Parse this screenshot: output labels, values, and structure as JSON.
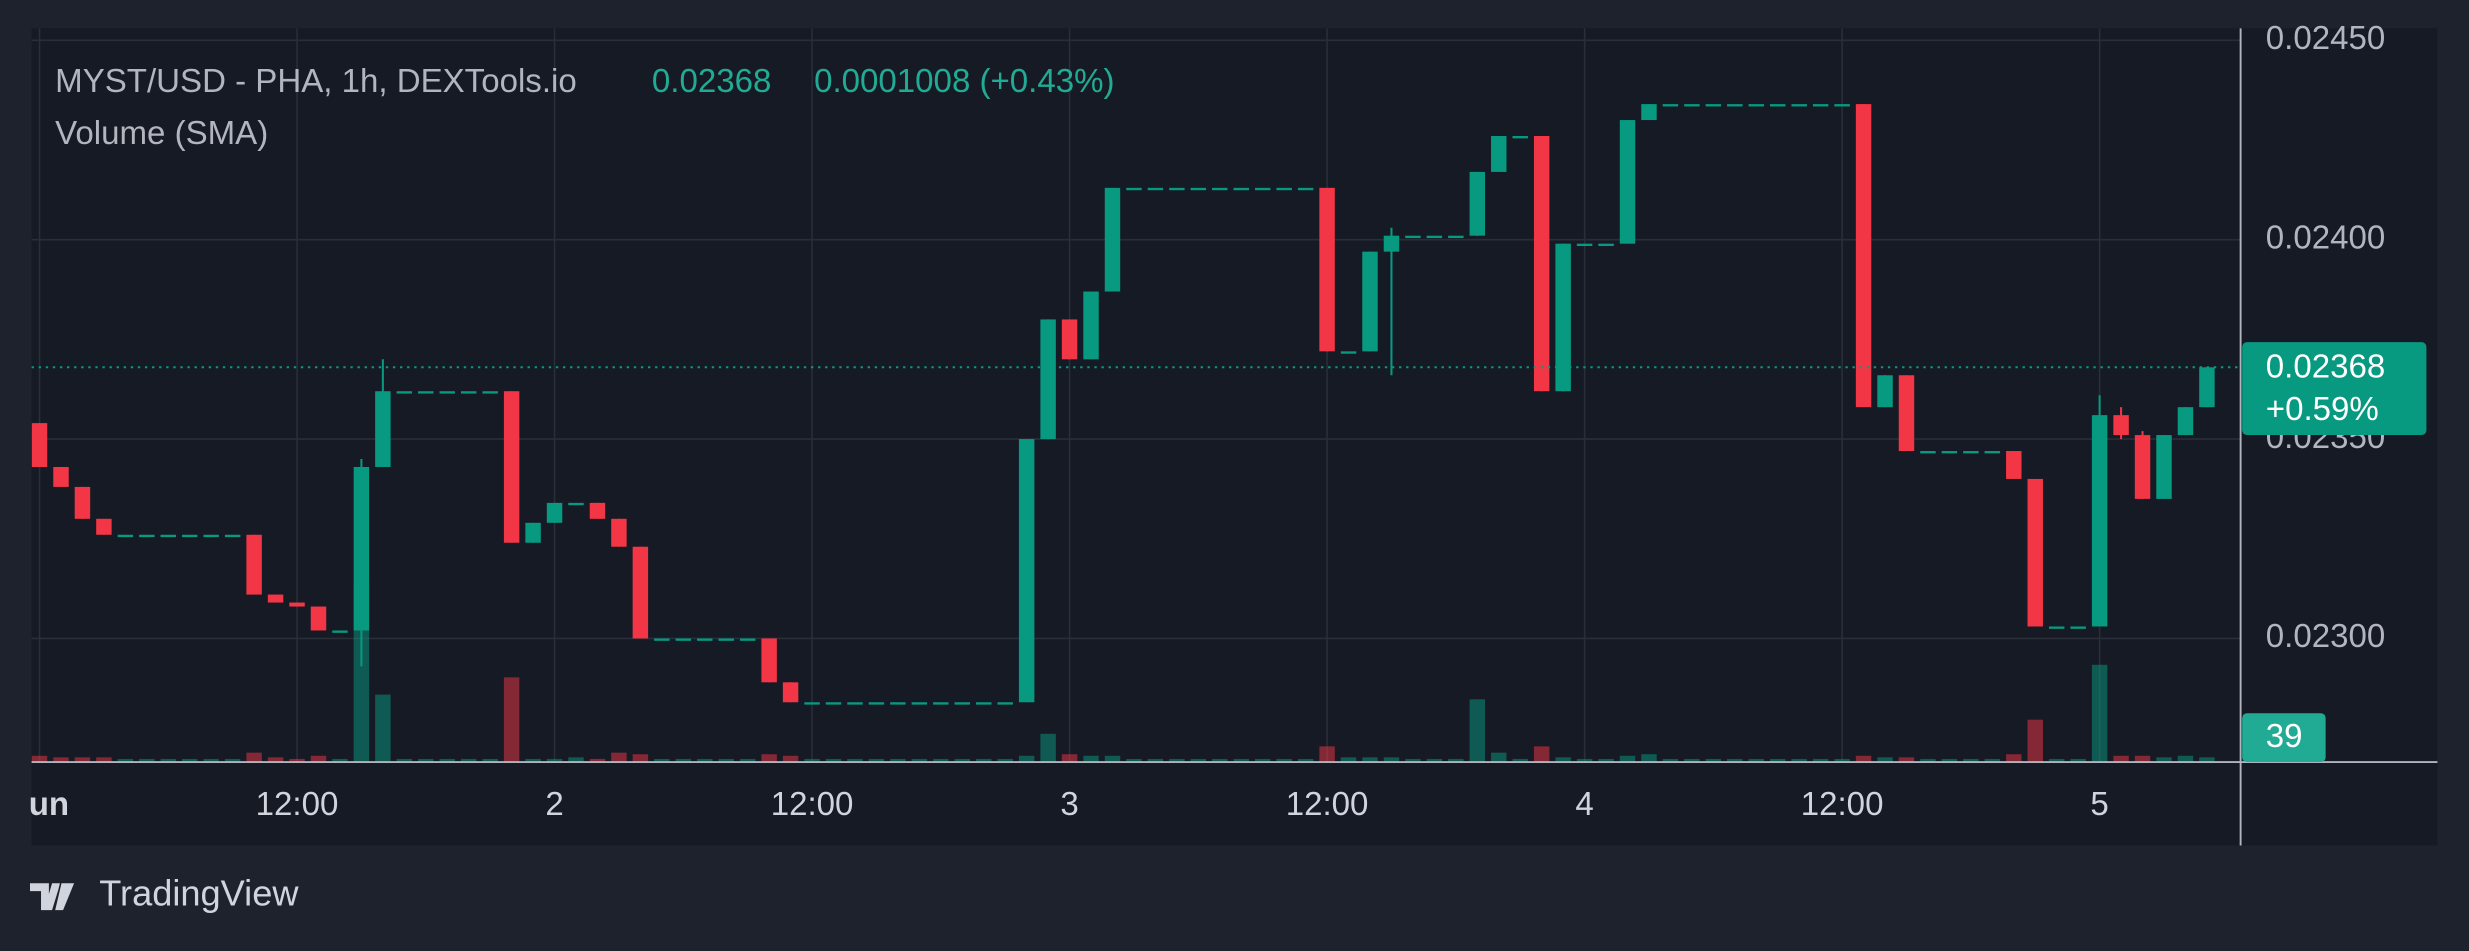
{
  "chart_data": {
    "type": "candlestick",
    "title": "MYST/USD - PHA, 1h, DEXTools.io",
    "header_price": 0.02368,
    "header_change": "0.0001008 (+0.43%)",
    "volume_title": "Volume (SMA)",
    "last_change": "+0.59%",
    "brand": "TradingView",
    "up_color": "#089981",
    "down_color": "#f23645",
    "grid": true,
    "xlim": [
      -0.37,
      102.57
    ],
    "xticks": [
      {
        "value": 0,
        "label": "un"
      },
      {
        "value": 12,
        "label": "12:00"
      },
      {
        "value": 24,
        "label": "2"
      },
      {
        "value": 36,
        "label": "12:00"
      },
      {
        "value": 48,
        "label": "3"
      },
      {
        "value": 60,
        "label": "12:00"
      },
      {
        "value": 72,
        "label": "4"
      },
      {
        "value": 84,
        "label": "12:00"
      },
      {
        "value": 96,
        "label": "5"
      }
    ],
    "ylim": [
      0.02269,
      0.02453
    ],
    "yticks": [
      {
        "value": 0.023,
        "label": "0.02300"
      },
      {
        "value": 0.0235,
        "label": "0.02350"
      },
      {
        "value": 0.024,
        "label": "0.02400"
      },
      {
        "value": 0.0245,
        "label": "0.02450"
      }
    ],
    "volume_ylim": [
      0,
      2400
    ],
    "ohlc": [
      [
        0.02354,
        0.02354,
        0.02343,
        0.02343
      ],
      [
        0.02343,
        0.02343,
        0.02338,
        0.02338
      ],
      [
        0.02338,
        0.02338,
        0.0233,
        0.0233
      ],
      [
        0.0233,
        0.0233,
        0.02326,
        0.02326
      ],
      [
        0.02326,
        0.02326,
        0.02326,
        0.02326
      ],
      [
        0.02326,
        0.02326,
        0.02326,
        0.02326
      ],
      [
        0.02326,
        0.02326,
        0.02326,
        0.02326
      ],
      [
        0.02326,
        0.02326,
        0.02326,
        0.02326
      ],
      [
        0.02326,
        0.02326,
        0.02326,
        0.02326
      ],
      [
        0.02326,
        0.02326,
        0.02326,
        0.02326
      ],
      [
        0.02326,
        0.02326,
        0.02311,
        0.02311
      ],
      [
        0.02311,
        0.02311,
        0.02309,
        0.02309
      ],
      [
        0.02309,
        0.02309,
        0.02308,
        0.02308
      ],
      [
        0.02308,
        0.02308,
        0.02302,
        0.02302
      ],
      [
        0.02302,
        0.02302,
        0.02302,
        0.02302
      ],
      [
        0.02302,
        0.02345,
        0.02293,
        0.02343
      ],
      [
        0.02343,
        0.0237,
        0.02343,
        0.02362
      ],
      [
        0.02362,
        0.02362,
        0.02362,
        0.02362
      ],
      [
        0.02362,
        0.02362,
        0.02362,
        0.02362
      ],
      [
        0.02362,
        0.02362,
        0.02362,
        0.02362
      ],
      [
        0.02362,
        0.02362,
        0.02362,
        0.02362
      ],
      [
        0.02362,
        0.02362,
        0.02362,
        0.02362
      ],
      [
        0.02362,
        0.02362,
        0.02324,
        0.02324
      ],
      [
        0.02324,
        0.02329,
        0.02324,
        0.02329
      ],
      [
        0.02329,
        0.02334,
        0.02329,
        0.02334
      ],
      [
        0.02334,
        0.02334,
        0.02334,
        0.02334
      ],
      [
        0.02334,
        0.02334,
        0.0233,
        0.0233
      ],
      [
        0.0233,
        0.0233,
        0.02323,
        0.02323
      ],
      [
        0.02323,
        0.02323,
        0.023,
        0.023
      ],
      [
        0.023,
        0.023,
        0.023,
        0.023
      ],
      [
        0.023,
        0.023,
        0.023,
        0.023
      ],
      [
        0.023,
        0.023,
        0.023,
        0.023
      ],
      [
        0.023,
        0.023,
        0.023,
        0.023
      ],
      [
        0.023,
        0.023,
        0.023,
        0.023
      ],
      [
        0.023,
        0.023,
        0.02289,
        0.02289
      ],
      [
        0.02289,
        0.02289,
        0.02284,
        0.02284
      ],
      [
        0.02284,
        0.02284,
        0.02284,
        0.02284
      ],
      [
        0.02284,
        0.02284,
        0.02284,
        0.02284
      ],
      [
        0.02284,
        0.02284,
        0.02284,
        0.02284
      ],
      [
        0.02284,
        0.02284,
        0.02284,
        0.02284
      ],
      [
        0.02284,
        0.02284,
        0.02284,
        0.02284
      ],
      [
        0.02284,
        0.02284,
        0.02284,
        0.02284
      ],
      [
        0.02284,
        0.02284,
        0.02284,
        0.02284
      ],
      [
        0.02284,
        0.02284,
        0.02284,
        0.02284
      ],
      [
        0.02284,
        0.02284,
        0.02284,
        0.02284
      ],
      [
        0.02284,
        0.02284,
        0.02284,
        0.02284
      ],
      [
        0.02284,
        0.0235,
        0.02284,
        0.0235
      ],
      [
        0.0235,
        0.0238,
        0.0235,
        0.0238
      ],
      [
        0.0238,
        0.0238,
        0.0237,
        0.0237
      ],
      [
        0.0237,
        0.02387,
        0.0237,
        0.02387
      ],
      [
        0.02387,
        0.02413,
        0.02387,
        0.02413
      ],
      [
        0.02413,
        0.02413,
        0.02413,
        0.02413
      ],
      [
        0.02413,
        0.02413,
        0.02413,
        0.02413
      ],
      [
        0.02413,
        0.02413,
        0.02413,
        0.02413
      ],
      [
        0.02413,
        0.02413,
        0.02413,
        0.02413
      ],
      [
        0.02413,
        0.02413,
        0.02413,
        0.02413
      ],
      [
        0.02413,
        0.02413,
        0.02413,
        0.02413
      ],
      [
        0.02413,
        0.02413,
        0.02413,
        0.02413
      ],
      [
        0.02413,
        0.02413,
        0.02413,
        0.02413
      ],
      [
        0.02413,
        0.02413,
        0.02413,
        0.02413
      ],
      [
        0.02413,
        0.02413,
        0.02372,
        0.02372
      ],
      [
        0.02372,
        0.02372,
        0.02372,
        0.02372
      ],
      [
        0.02372,
        0.02397,
        0.02372,
        0.02397
      ],
      [
        0.02397,
        0.02403,
        0.02366,
        0.02401
      ],
      [
        0.02401,
        0.02401,
        0.02401,
        0.02401
      ],
      [
        0.02401,
        0.02401,
        0.02401,
        0.02401
      ],
      [
        0.02401,
        0.02401,
        0.02401,
        0.02401
      ],
      [
        0.02401,
        0.02417,
        0.02401,
        0.02417
      ],
      [
        0.02417,
        0.02426,
        0.02417,
        0.02426
      ],
      [
        0.02426,
        0.02426,
        0.02426,
        0.02426
      ],
      [
        0.02426,
        0.02426,
        0.02362,
        0.02362
      ],
      [
        0.02362,
        0.02399,
        0.02362,
        0.02399
      ],
      [
        0.02399,
        0.02399,
        0.02399,
        0.02399
      ],
      [
        0.02399,
        0.02399,
        0.02399,
        0.02399
      ],
      [
        0.02399,
        0.0243,
        0.02399,
        0.0243
      ],
      [
        0.0243,
        0.02434,
        0.0243,
        0.02434
      ],
      [
        0.02434,
        0.02434,
        0.02434,
        0.02434
      ],
      [
        0.02434,
        0.02434,
        0.02434,
        0.02434
      ],
      [
        0.02434,
        0.02434,
        0.02434,
        0.02434
      ],
      [
        0.02434,
        0.02434,
        0.02434,
        0.02434
      ],
      [
        0.02434,
        0.02434,
        0.02434,
        0.02434
      ],
      [
        0.02434,
        0.02434,
        0.02434,
        0.02434
      ],
      [
        0.02434,
        0.02434,
        0.02434,
        0.02434
      ],
      [
        0.02434,
        0.02434,
        0.02434,
        0.02434
      ],
      [
        0.02434,
        0.02434,
        0.02434,
        0.02434
      ],
      [
        0.02434,
        0.02434,
        0.02358,
        0.02358
      ],
      [
        0.02358,
        0.02366,
        0.02358,
        0.02366
      ],
      [
        0.02366,
        0.02366,
        0.02347,
        0.02347
      ],
      [
        0.02347,
        0.02347,
        0.02347,
        0.02347
      ],
      [
        0.02347,
        0.02347,
        0.02347,
        0.02347
      ],
      [
        0.02347,
        0.02347,
        0.02347,
        0.02347
      ],
      [
        0.02347,
        0.02347,
        0.02347,
        0.02347
      ],
      [
        0.02347,
        0.02347,
        0.0234,
        0.0234
      ],
      [
        0.0234,
        0.0234,
        0.02303,
        0.02303
      ],
      [
        0.02303,
        0.02303,
        0.02303,
        0.02303
      ],
      [
        0.02303,
        0.02303,
        0.02303,
        0.02303
      ],
      [
        0.02303,
        0.02361,
        0.02303,
        0.02356
      ],
      [
        0.02356,
        0.02358,
        0.0235,
        0.02351
      ],
      [
        0.02351,
        0.02352,
        0.02335,
        0.02335
      ],
      [
        0.02335,
        0.02351,
        0.02335,
        0.02351
      ],
      [
        0.02351,
        0.02358,
        0.02351,
        0.02358
      ],
      [
        0.02358,
        0.02368,
        0.02358,
        0.02368
      ]
    ],
    "volume": [
      52,
      39,
      39,
      39,
      26,
      26,
      26,
      26,
      26,
      26,
      78,
      39,
      26,
      52,
      26,
      1482,
      559,
      26,
      26,
      26,
      26,
      26,
      702,
      26,
      26,
      39,
      26,
      78,
      65,
      26,
      26,
      26,
      26,
      26,
      65,
      52,
      26,
      26,
      26,
      26,
      26,
      26,
      26,
      26,
      26,
      26,
      52,
      234,
      65,
      52,
      52,
      26,
      26,
      26,
      26,
      26,
      26,
      26,
      26,
      26,
      130,
      39,
      39,
      39,
      26,
      26,
      26,
      520,
      78,
      26,
      130,
      39,
      26,
      26,
      52,
      65,
      26,
      26,
      26,
      26,
      26,
      26,
      26,
      26,
      26,
      52,
      39,
      39,
      26,
      26,
      26,
      26,
      65,
      351,
      26,
      26,
      806,
      52,
      52,
      39,
      52,
      39
    ]
  }
}
